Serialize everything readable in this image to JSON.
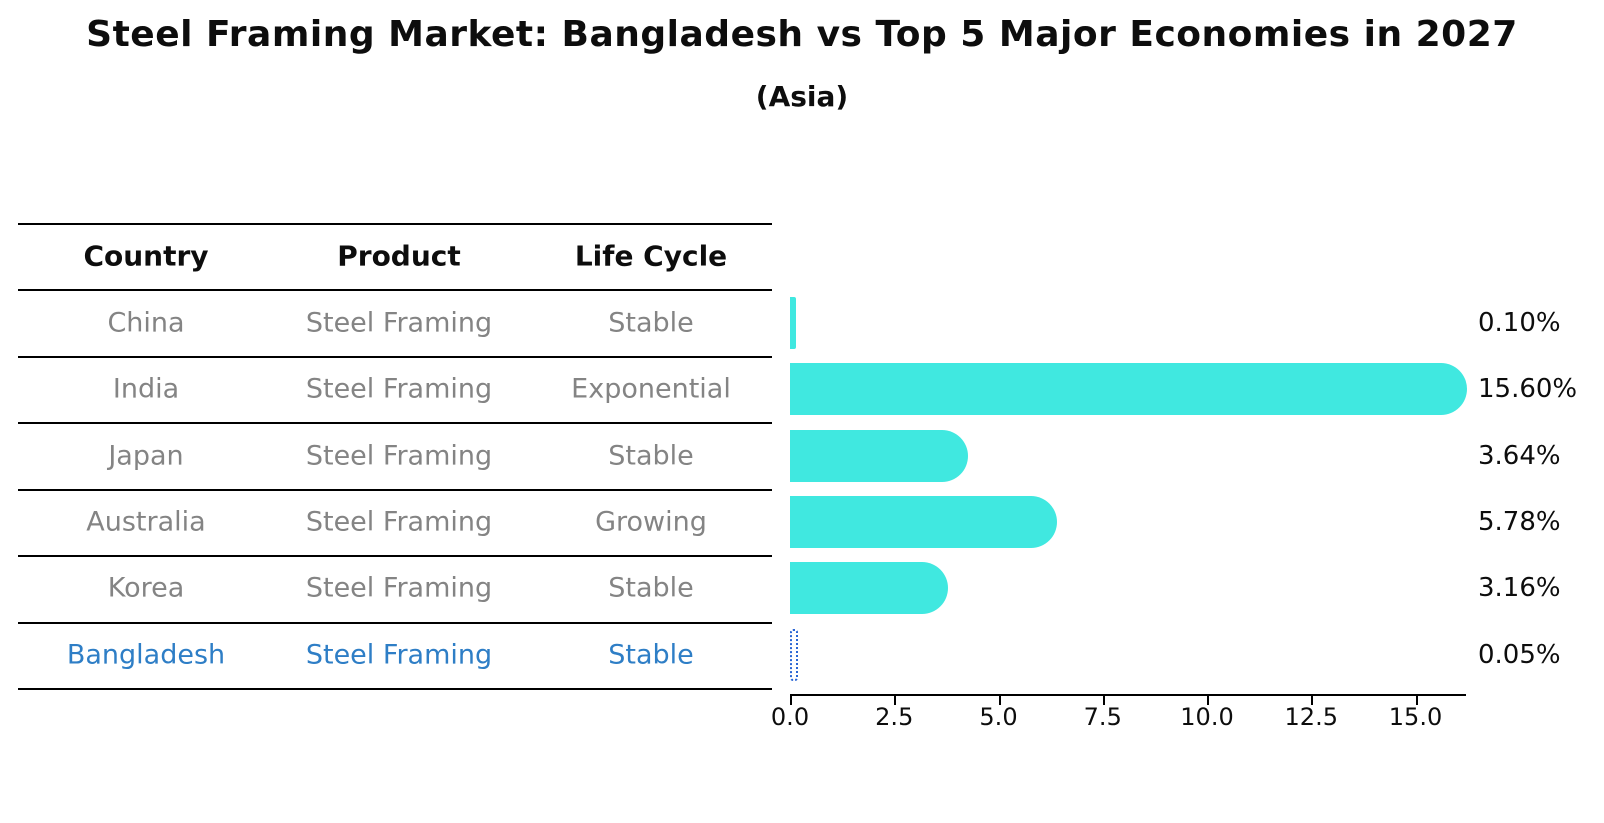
{
  "title": "Steel Framing Market: Bangladesh vs Top 5 Major Economies in 2027",
  "subtitle": "(Asia)",
  "table": {
    "headers": [
      "Country",
      "Product",
      "Life Cycle"
    ],
    "rows": [
      {
        "country": "China",
        "product": "Steel Framing",
        "life_cycle": "Stable",
        "highlight": false
      },
      {
        "country": "India",
        "product": "Steel Framing",
        "life_cycle": "Exponential",
        "highlight": false
      },
      {
        "country": "Japan",
        "product": "Steel Framing",
        "life_cycle": "Stable",
        "highlight": false
      },
      {
        "country": "Australia",
        "product": "Steel Framing",
        "life_cycle": "Growing",
        "highlight": false
      },
      {
        "country": "Korea",
        "product": "Steel Framing",
        "life_cycle": "Stable",
        "highlight": false
      },
      {
        "country": "Bangladesh",
        "product": "Steel Framing",
        "life_cycle": "Stable",
        "highlight": true
      }
    ]
  },
  "chart_data": {
    "type": "bar",
    "orientation": "horizontal",
    "title": "Steel Framing Market: Bangladesh vs Top 5 Major Economies in 2027 (Asia)",
    "categories": [
      "China",
      "India",
      "Japan",
      "Australia",
      "Korea",
      "Bangladesh"
    ],
    "values": [
      0.1,
      15.6,
      3.64,
      5.78,
      3.16,
      0.05
    ],
    "value_labels": [
      "0.10%",
      "15.60%",
      "3.64%",
      "5.78%",
      "3.16%",
      "0.05%"
    ],
    "x_ticks": [
      0.0,
      2.5,
      5.0,
      7.5,
      10.0,
      12.5,
      15.0
    ],
    "x_tick_labels": [
      "0.0",
      "2.5",
      "5.0",
      "7.5",
      "10.0",
      "12.5",
      "15.0"
    ],
    "xlim": [
      0,
      16.2
    ],
    "xlabel": "",
    "ylabel": "",
    "grid": false,
    "legend": false,
    "highlight_index": 5,
    "highlight_style": "dashed-outline"
  },
  "colors": {
    "bar_fill": "#40E8E0",
    "highlight_blue": "#2E7EC6",
    "highlight_dash": "#2B66D4",
    "table_text_gray": "#848484",
    "line_black": "#000000",
    "background": "#FFFFFF"
  }
}
